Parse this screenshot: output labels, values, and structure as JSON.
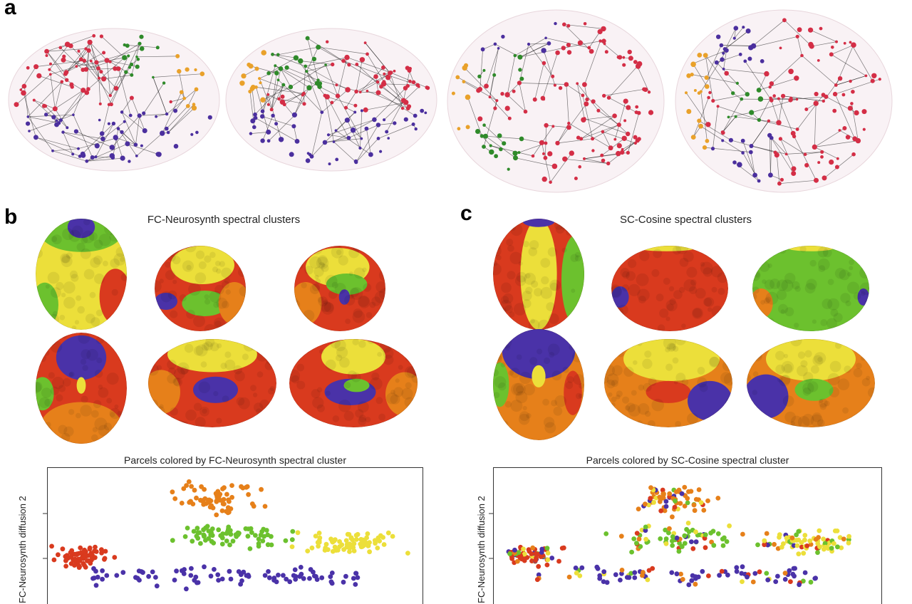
{
  "panels": {
    "a": {
      "letter": "a"
    },
    "b": {
      "letter": "b",
      "surface_title": "FC-Neurosynth spectral clusters",
      "scatter_title": "Parcels colored by FC-Neurosynth spectral cluster",
      "ylabel": "FC-Neurosynth diffusion 2"
    },
    "c": {
      "letter": "c",
      "surface_title": "SC-Cosine spectral clusters",
      "scatter_title": "Parcels colored by SC-Cosine spectral cluster",
      "ylabel": "FC-Neurosynth diffusion 2"
    }
  },
  "colors": {
    "red": "#d93a1e",
    "orange": "#e6801a",
    "yellow": "#ecdf3a",
    "green": "#6cc12e",
    "purple": "#4a32a8",
    "network_red": "#d42e46",
    "network_green": "#2f8a2a",
    "network_orange": "#e9a12a",
    "network_purple": "#4b2f9e"
  },
  "chart_data": [
    {
      "type": "scatter",
      "title": "Parcels colored by FC-Neurosynth spectral cluster",
      "ylabel": "FC-Neurosynth diffusion 2",
      "xlabel": "",
      "series": [
        {
          "color": "red",
          "count": 70
        },
        {
          "color": "orange",
          "count": 65
        },
        {
          "color": "green",
          "count": 70
        },
        {
          "color": "yellow",
          "count": 75
        },
        {
          "color": "purple",
          "count": 85
        }
      ]
    },
    {
      "type": "scatter",
      "title": "Parcels colored by SC-Cosine spectral cluster",
      "ylabel": "FC-Neurosynth diffusion 2",
      "xlabel": "",
      "series": [
        {
          "color": "red",
          "count": 70
        },
        {
          "color": "orange",
          "count": 65
        },
        {
          "color": "green",
          "count": 70
        },
        {
          "color": "yellow",
          "count": 75
        },
        {
          "color": "purple",
          "count": 85
        }
      ]
    }
  ]
}
